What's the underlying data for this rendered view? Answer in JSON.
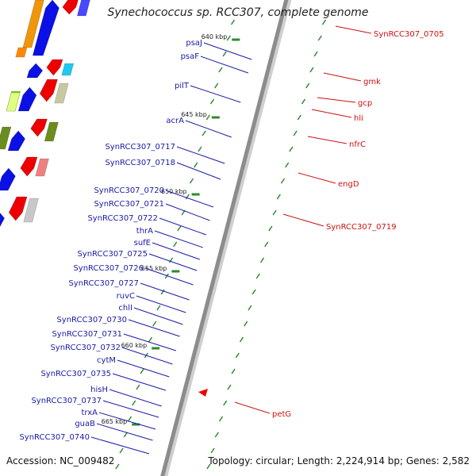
{
  "title": "Synechococcus sp. RCC307, complete genome",
  "accession": "Accession: NC_009482",
  "summary": "Topology: circular; Length: 2,224,914 bp; Genes: 2,582",
  "colors": {
    "backbone": "#8c8c8c",
    "forward_label": "#1a1aa6",
    "reverse_label": "#cc1111",
    "tick": "#2e8b2e"
  },
  "ticks": [
    {
      "label": "640 kbp"
    },
    {
      "label": "645 kbp"
    },
    {
      "label": "650 kbp"
    },
    {
      "label": "655 kbp"
    },
    {
      "label": "660 kbp"
    },
    {
      "label": "665 kbp"
    }
  ],
  "forward_genes": [
    {
      "name": "psaJ"
    },
    {
      "name": "psaF"
    },
    {
      "name": "pilT"
    },
    {
      "name": "acrA"
    },
    {
      "name": "SynRCC307_0717"
    },
    {
      "name": "SynRCC307_0718"
    },
    {
      "name": "SynRCC307_0720"
    },
    {
      "name": "SynRCC307_0721"
    },
    {
      "name": "SynRCC307_0722"
    },
    {
      "name": "thrA"
    },
    {
      "name": "sufE"
    },
    {
      "name": "SynRCC307_0725"
    },
    {
      "name": "SynRCC307_0726"
    },
    {
      "name": "SynRCC307_0727"
    },
    {
      "name": "ruvC"
    },
    {
      "name": "chlI"
    },
    {
      "name": "SynRCC307_0730"
    },
    {
      "name": "SynRCC307_0731"
    },
    {
      "name": "SynRCC307_0732"
    },
    {
      "name": "cytM"
    },
    {
      "name": "SynRCC307_0735"
    },
    {
      "name": "hisH"
    },
    {
      "name": "SynRCC307_0737"
    },
    {
      "name": "trxA"
    },
    {
      "name": "guaB"
    },
    {
      "name": "SynRCC307_0740"
    }
  ],
  "reverse_genes": [
    {
      "name": "SynRCC307_0705"
    },
    {
      "name": "gmk"
    },
    {
      "name": "gcp"
    },
    {
      "name": "hli"
    },
    {
      "name": "nfrC"
    },
    {
      "name": "engD"
    },
    {
      "name": "SynRCC307_0719"
    },
    {
      "name": "petG"
    }
  ]
}
